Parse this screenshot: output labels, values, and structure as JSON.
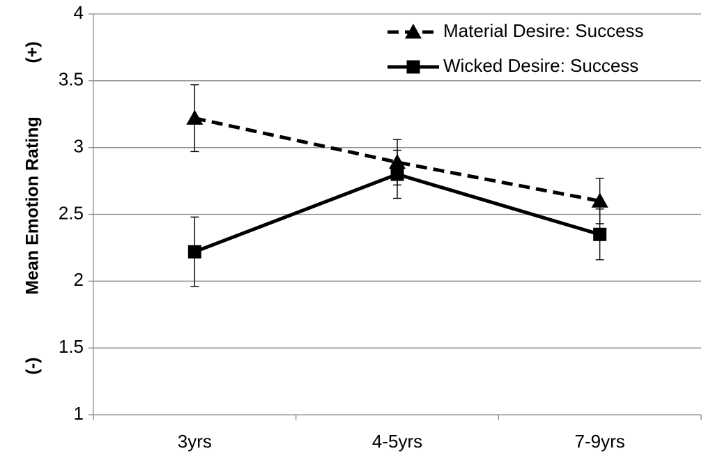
{
  "chart_data": {
    "type": "line",
    "title": "",
    "xlabel": "",
    "ylabel": "Mean Emotion Rating",
    "ylabel_high_marker": "(+)",
    "ylabel_low_marker": "(-)",
    "ylim": [
      1,
      4
    ],
    "y_ticks": [
      1,
      1.5,
      2,
      2.5,
      3,
      3.5,
      4
    ],
    "y_tick_labels": [
      "1",
      "1.5",
      "2",
      "2.5",
      "3",
      "3.5",
      "4"
    ],
    "categories": [
      "3yrs",
      "4-5yrs",
      "7-9yrs"
    ],
    "grid": "horizontal",
    "legend_position": "top-right",
    "error_bars": true,
    "series": [
      {
        "name": "Material Desire: Success",
        "values": [
          3.22,
          2.89,
          2.6
        ],
        "error": [
          0.25,
          0.17,
          0.17
        ],
        "marker": "triangle",
        "line_style": "dashed",
        "color": "#000000"
      },
      {
        "name": "Wicked Desire: Success",
        "values": [
          2.22,
          2.8,
          2.35
        ],
        "error": [
          0.26,
          0.18,
          0.19
        ],
        "marker": "square",
        "line_style": "solid",
        "color": "#000000"
      }
    ]
  }
}
